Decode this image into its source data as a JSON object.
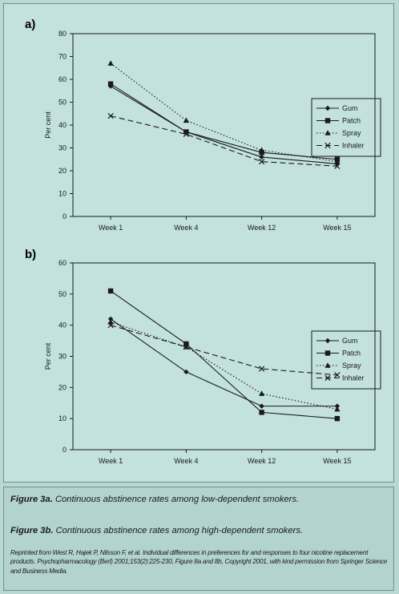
{
  "chart_data": [
    {
      "type": "line",
      "panel_label": "a)",
      "title": "",
      "xlabel": "",
      "ylabel": "Per cent",
      "ylim": [
        0,
        80
      ],
      "yticks": [
        0,
        10,
        20,
        30,
        40,
        50,
        60,
        70,
        80
      ],
      "categories": [
        "Week 1",
        "Week 4",
        "Week 12",
        "Week 15"
      ],
      "grid": false,
      "legend": "right",
      "series": [
        {
          "name": "Gum",
          "marker": "diamond",
          "dash": "solid",
          "values": [
            57,
            37,
            26,
            23
          ]
        },
        {
          "name": "Patch",
          "marker": "square",
          "dash": "solid",
          "values": [
            58,
            37,
            28,
            25
          ]
        },
        {
          "name": "Spray",
          "marker": "triangle",
          "dash": "dotted",
          "values": [
            67,
            42,
            29,
            24
          ]
        },
        {
          "name": "Inhaler",
          "marker": "x",
          "dash": "dashed",
          "values": [
            44,
            36,
            24,
            22
          ]
        }
      ]
    },
    {
      "type": "line",
      "panel_label": "b)",
      "title": "",
      "xlabel": "",
      "ylabel": "Per cent",
      "ylim": [
        0,
        60
      ],
      "yticks": [
        0,
        10,
        20,
        30,
        40,
        50,
        60
      ],
      "categories": [
        "Week 1",
        "Week 4",
        "Week 12",
        "Week 15"
      ],
      "grid": false,
      "legend": "right",
      "series": [
        {
          "name": "Gum",
          "marker": "diamond",
          "dash": "solid",
          "values": [
            42,
            25,
            14,
            14
          ]
        },
        {
          "name": "Patch",
          "marker": "square",
          "dash": "solid",
          "values": [
            51,
            34,
            12,
            10
          ]
        },
        {
          "name": "Spray",
          "marker": "triangle",
          "dash": "dotted",
          "values": [
            41,
            33,
            18,
            13
          ]
        },
        {
          "name": "Inhaler",
          "marker": "x",
          "dash": "dashed",
          "values": [
            40,
            33,
            26,
            24
          ]
        }
      ]
    }
  ],
  "captions": {
    "fig3a_label": "Figure 3a.",
    "fig3a_text": " Continuous abstinence rates among low-dependent smokers.",
    "fig3b_label": "Figure 3b.",
    "fig3b_text": " Continuous abstinence rates among high-dependent smokers.",
    "credit": "Reprinted from West R, Hajek P, Nilsson F, et al. Individual differences in preferences for and responses to four nicotine replacement products. Psychopharmacology (Berl) 2001;153(2):225-230, Figure 8a and 8b, Copyright 2001, with kind permission from Springer Science and Business Media."
  },
  "colors": {
    "background": "#c3e1dd",
    "caption_background": "#b3d3ce",
    "ink": "#1a1a1a"
  }
}
